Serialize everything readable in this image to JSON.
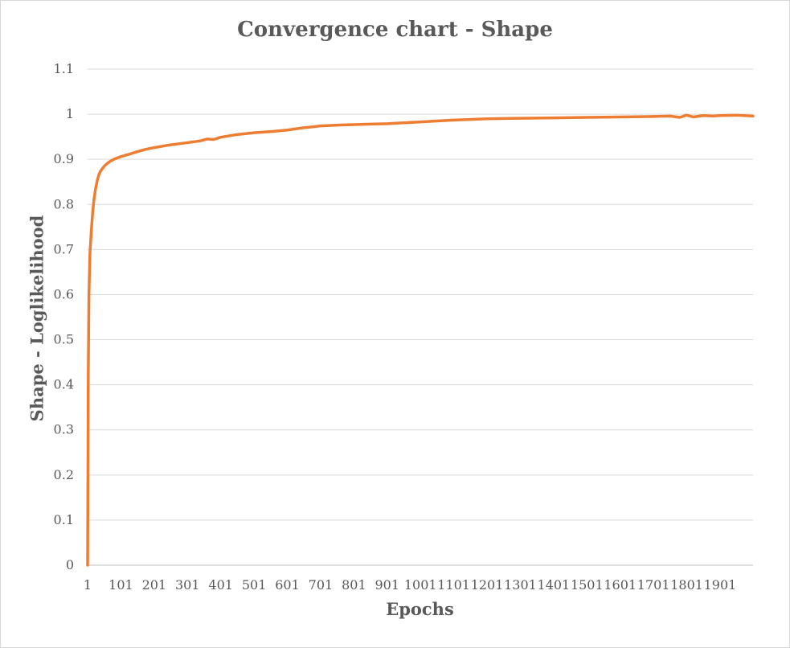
{
  "chart_data": {
    "type": "line",
    "title": "Convergence chart - Shape",
    "xlabel": "Epochs",
    "ylabel": "Shape -  Loglikelihood",
    "ylim": [
      0,
      1.1
    ],
    "yticks": [
      "0",
      "0.1",
      "0.2",
      "0.3",
      "0.4",
      "0.5",
      "0.6",
      "0.7",
      "0.8",
      "0.9",
      "1",
      "1.1"
    ],
    "xlim": [
      1,
      2000
    ],
    "xticks": [
      "1",
      "101",
      "201",
      "301",
      "401",
      "501",
      "601",
      "701",
      "801",
      "901",
      "1001",
      "1101",
      "1201",
      "1301",
      "1401",
      "1501",
      "1601",
      "1701",
      "1801",
      "1901"
    ],
    "grid": true,
    "legend": "none",
    "series": [
      {
        "color": "#ED7D31",
        "x": [
          1,
          2,
          3,
          5,
          8,
          12,
          16,
          20,
          25,
          30,
          35,
          40,
          50,
          60,
          70,
          80,
          90,
          101,
          120,
          150,
          175,
          201,
          240,
          280,
          301,
          340,
          360,
          380,
          401,
          450,
          501,
          560,
          601,
          650,
          701,
          760,
          801,
          850,
          901,
          950,
          1001,
          1050,
          1101,
          1201,
          1301,
          1401,
          1501,
          1601,
          1701,
          1750,
          1780,
          1800,
          1820,
          1850,
          1880,
          1901,
          1950,
          2000
        ],
        "y": [
          0.0,
          0.2,
          0.42,
          0.6,
          0.69,
          0.74,
          0.78,
          0.81,
          0.835,
          0.853,
          0.866,
          0.874,
          0.884,
          0.891,
          0.896,
          0.9,
          0.903,
          0.906,
          0.91,
          0.917,
          0.922,
          0.926,
          0.931,
          0.935,
          0.937,
          0.941,
          0.945,
          0.944,
          0.949,
          0.955,
          0.959,
          0.962,
          0.965,
          0.97,
          0.974,
          0.976,
          0.977,
          0.978,
          0.979,
          0.981,
          0.983,
          0.985,
          0.987,
          0.99,
          0.991,
          0.992,
          0.993,
          0.994,
          0.995,
          0.996,
          0.993,
          0.998,
          0.994,
          0.997,
          0.996,
          0.997,
          0.998,
          0.996
        ]
      }
    ]
  }
}
